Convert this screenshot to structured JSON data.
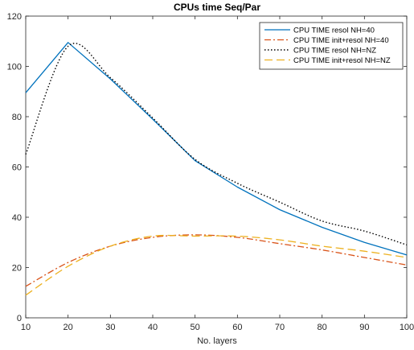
{
  "chart_data": {
    "type": "line",
    "title": "CPUs time Seq/Par",
    "xlabel": "No. layers",
    "ylabel": "",
    "xlim": [
      10,
      100
    ],
    "ylim": [
      0,
      120
    ],
    "xticks": [
      10,
      20,
      30,
      40,
      50,
      60,
      70,
      80,
      90,
      100
    ],
    "yticks": [
      0,
      20,
      40,
      60,
      80,
      100,
      120
    ],
    "grid": false,
    "legend_position": "top-right",
    "x": [
      10,
      20,
      30,
      40,
      50,
      60,
      70,
      80,
      90,
      100
    ],
    "series": [
      {
        "name": "CPU TIME resol NH=40",
        "color": "#0072BD",
        "line_style": "solid",
        "values": [
          89.5,
          109.5,
          95.0,
          79.0,
          62.5,
          52.0,
          43.0,
          36.0,
          30.0,
          25.0
        ]
      },
      {
        "name": "CPU TIME init+resol NH=40",
        "color": "#D95319",
        "line_style": "dash-dot",
        "values": [
          12.5,
          22.0,
          28.5,
          32.0,
          33.0,
          32.0,
          29.5,
          27.0,
          24.0,
          21.0
        ]
      },
      {
        "name": "CPU TIME resol NH=NZ",
        "color": "#000000",
        "line_style": "dotted",
        "values": [
          65.0,
          108.0,
          95.5,
          79.5,
          63.0,
          53.5,
          46.0,
          38.5,
          34.5,
          29.0
        ]
      },
      {
        "name": "CPU TIME init+resol NH=NZ",
        "color": "#EDB120",
        "line_style": "dashed",
        "values": [
          9.0,
          20.5,
          28.5,
          32.5,
          32.5,
          32.5,
          31.0,
          28.5,
          26.5,
          24.0
        ]
      }
    ]
  }
}
